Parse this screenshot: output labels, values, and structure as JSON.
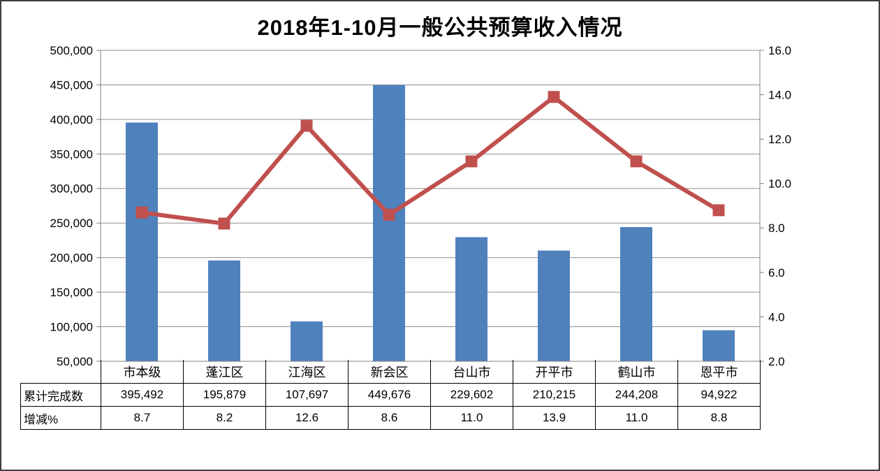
{
  "chart_data": {
    "type": "combo",
    "title": "2018年1-10月一般公共预算收入情况",
    "categories": [
      "市本级",
      "蓬江区",
      "江海区",
      "新会区",
      "台山市",
      "开平市",
      "鹤山市",
      "恩平市"
    ],
    "series": [
      {
        "name": "累计完成数",
        "type": "bar",
        "axis": "left",
        "color": "#4F81BD",
        "values": [
          395492,
          195879,
          107697,
          449676,
          229602,
          210215,
          244208,
          94922
        ],
        "value_labels": [
          "395,492",
          "195,879",
          "107,697",
          "449,676",
          "229,602",
          "210,215",
          "244,208",
          "94,922"
        ]
      },
      {
        "name": "增减%",
        "type": "line",
        "axis": "right",
        "marker": "square",
        "color": "#C0504D",
        "values": [
          8.7,
          8.2,
          12.6,
          8.6,
          11.0,
          13.9,
          11.0,
          8.8
        ],
        "value_labels": [
          "8.7",
          "8.2",
          "12.6",
          "8.6",
          "11.0",
          "13.9",
          "11.0",
          "8.8"
        ]
      }
    ],
    "left_axis": {
      "min": 50000,
      "max": 500000,
      "step": 50000,
      "tick_labels": [
        "500,000",
        "450,000",
        "400,000",
        "350,000",
        "300,000",
        "250,000",
        "200,000",
        "150,000",
        "100,000",
        "50,000"
      ]
    },
    "right_axis": {
      "min": 2.0,
      "max": 16.0,
      "step": 2.0,
      "tick_labels": [
        "16.0",
        "14.0",
        "12.0",
        "10.0",
        "8.0",
        "6.0",
        "4.0",
        "2.0"
      ]
    },
    "gridlines": "horizontal",
    "legend_position": "none"
  },
  "colors": {
    "bar": "#4F81BD",
    "line": "#C0504D",
    "gridline": "#909090",
    "axis_line": "#7F7F7F",
    "table_border": "#000000",
    "text": "#000000",
    "background": "#FFFFFF"
  }
}
